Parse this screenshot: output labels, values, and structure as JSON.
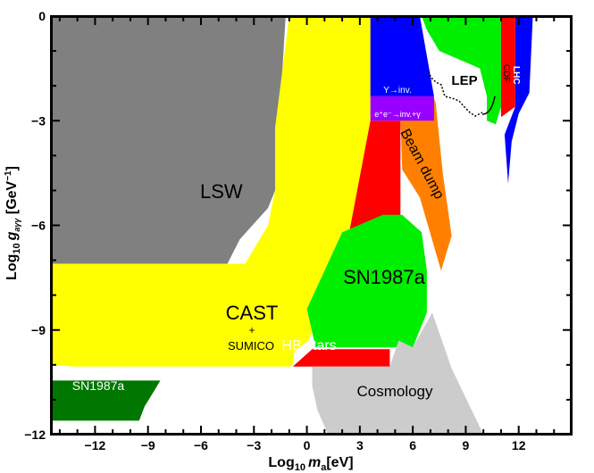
{
  "chart_data": {
    "type": "area",
    "title": "",
    "xlabel_prefix": "Log",
    "xlabel_sub": "10",
    "xlabel_var": "m",
    "xlabel_var_sub": "a",
    "xlabel_unit": "[eV]",
    "ylabel_prefix": "Log",
    "ylabel_sub": "10",
    "ylabel_var": "g",
    "ylabel_var_sub": "aγγ",
    "ylabel_unit_open": " [GeV",
    "ylabel_unit_sup": "−1",
    "ylabel_unit_close": "]",
    "xlim": [
      -14.5,
      15
    ],
    "ylim": [
      -12,
      0
    ],
    "xticks": [
      -12,
      -9,
      -6,
      -3,
      0,
      3,
      6,
      9,
      12
    ],
    "xtick_labels": [
      "−12",
      "−9",
      "−6",
      "−3",
      "0",
      "3",
      "6",
      "9",
      "12"
    ],
    "yticks": [
      0,
      -3,
      -6,
      -9,
      -12
    ],
    "ytick_labels": [
      "0",
      "−3",
      "−6",
      "−9",
      "−12"
    ],
    "grid": false,
    "regions": [
      {
        "name": "LSW",
        "color": "#808080",
        "label": "LSW",
        "polygon": [
          [
            -14.5,
            0
          ],
          [
            -1.2,
            0
          ],
          [
            -1.8,
            -5.0
          ],
          [
            -2.2,
            -5.5
          ],
          [
            -3.8,
            -6.4
          ],
          [
            -4.5,
            -7.1
          ],
          [
            -14.5,
            -7.1
          ]
        ]
      },
      {
        "name": "CAST",
        "color": "#ffff00",
        "label": "CAST",
        "sublabel_plus": "+",
        "sublabel": "SUMICO",
        "polygon": [
          [
            -1.0,
            0
          ],
          [
            3.6,
            0
          ],
          [
            3.6,
            -4.4
          ],
          [
            1.4,
            -7.6
          ],
          [
            1.0,
            -8.2
          ],
          [
            0.1,
            -9.3
          ],
          [
            -0.7,
            -9.6
          ],
          [
            -0.8,
            -10.0
          ],
          [
            -1.0,
            -10.05
          ],
          [
            -13.2,
            -10.05
          ],
          [
            -14.5,
            -10.0
          ],
          [
            -14.5,
            -7.1
          ],
          [
            -3.5,
            -7.1
          ],
          [
            -2.2,
            -6.0
          ],
          [
            -1.8,
            -5.0
          ],
          [
            -1.8,
            -3.2
          ]
        ]
      },
      {
        "name": "HB stars",
        "color": "#ff0000",
        "label": "HB stars",
        "polygon": [
          [
            0.3,
            -9.55
          ],
          [
            4.7,
            -9.55
          ],
          [
            4.7,
            -10.05
          ],
          [
            -0.8,
            -10.05
          ]
        ]
      },
      {
        "name": "HB high mass",
        "color": "#ff0000",
        "label": "",
        "polygon": [
          [
            3.6,
            -3.0
          ],
          [
            5.3,
            -3.0
          ],
          [
            5.3,
            -6.2
          ],
          [
            2.4,
            -6.2
          ]
        ]
      },
      {
        "name": "SN1987a",
        "color": "#00ee00",
        "label": "SN1987a",
        "polygon": [
          [
            2.0,
            -6.2
          ],
          [
            4.3,
            -5.7
          ],
          [
            5.4,
            -5.7
          ],
          [
            6.5,
            -6.2
          ],
          [
            6.8,
            -7.3
          ],
          [
            6.8,
            -8.5
          ],
          [
            6.0,
            -9.5
          ],
          [
            0.5,
            -9.5
          ],
          [
            0.0,
            -8.4
          ]
        ]
      },
      {
        "name": "SN1987a low mass",
        "color": "#007700",
        "label": "SN1987a",
        "polygon": [
          [
            -14.5,
            -10.45
          ],
          [
            -8.3,
            -10.45
          ],
          [
            -8.6,
            -10.7
          ],
          [
            -9.2,
            -11.2
          ],
          [
            -9.5,
            -11.6
          ],
          [
            -14.5,
            -11.6
          ]
        ]
      },
      {
        "name": "Cosmology",
        "color": "#cccccc",
        "label": "Cosmology",
        "polygon": [
          [
            0.3,
            -10.05
          ],
          [
            4.7,
            -10.05
          ],
          [
            5.2,
            -9.3
          ],
          [
            6.0,
            -9.5
          ],
          [
            7.1,
            -8.5
          ],
          [
            8.2,
            -10.1
          ],
          [
            10.0,
            -12.0
          ],
          [
            1.2,
            -12.0
          ],
          [
            0.6,
            -11.3
          ],
          [
            0.3,
            -10.6
          ]
        ]
      },
      {
        "name": "Beam dump",
        "color": "#ff8000",
        "label": "Beam dump",
        "polygon": [
          [
            5.3,
            -3.0
          ],
          [
            6.3,
            -1.0
          ],
          [
            7.3,
            -2.5
          ],
          [
            7.7,
            -4.5
          ],
          [
            8.2,
            -6.3
          ],
          [
            7.6,
            -7.3
          ],
          [
            6.4,
            -5.2
          ],
          [
            5.4,
            -4.4
          ]
        ]
      },
      {
        "name": "Upsilon",
        "color": "#0000ff",
        "label": "Υ→inv.",
        "polygon": [
          [
            3.6,
            0
          ],
          [
            6.4,
            0
          ],
          [
            7.2,
            -2.3
          ],
          [
            3.6,
            -2.3
          ]
        ]
      },
      {
        "name": "e+e- invisible",
        "color": "#9900ff",
        "label": "e⁺e⁻→inv.+γ",
        "polygon": [
          [
            3.6,
            -2.3
          ],
          [
            7.2,
            -2.3
          ],
          [
            7.2,
            -3.0
          ],
          [
            3.6,
            -3.0
          ]
        ]
      },
      {
        "name": "LEP",
        "color": "#00ee00",
        "label": "LEP",
        "polygon": [
          [
            6.5,
            0
          ],
          [
            11.0,
            0
          ],
          [
            11.0,
            -2.6
          ],
          [
            10.7,
            -3.1
          ],
          [
            10.2,
            -3.0
          ],
          [
            10.2,
            -2.3
          ],
          [
            9.8,
            -1.5
          ],
          [
            7.5,
            -1.0
          ],
          [
            6.8,
            -0.4
          ]
        ]
      },
      {
        "name": "CDF",
        "color": "#ff0000",
        "label": "CDF",
        "polygon": [
          [
            11.0,
            0
          ],
          [
            11.8,
            0
          ],
          [
            11.8,
            -2.6
          ],
          [
            11.0,
            -2.9
          ]
        ]
      },
      {
        "name": "LHC",
        "color": "#0000ff",
        "label": "LHC",
        "polygon": [
          [
            11.8,
            0
          ],
          [
            12.8,
            0
          ],
          [
            12.6,
            -2.2
          ],
          [
            12.0,
            -2.8
          ],
          [
            11.6,
            -3.6
          ],
          [
            11.4,
            -4.8
          ],
          [
            11.2,
            -3.4
          ],
          [
            11.8,
            -2.6
          ]
        ]
      }
    ]
  }
}
